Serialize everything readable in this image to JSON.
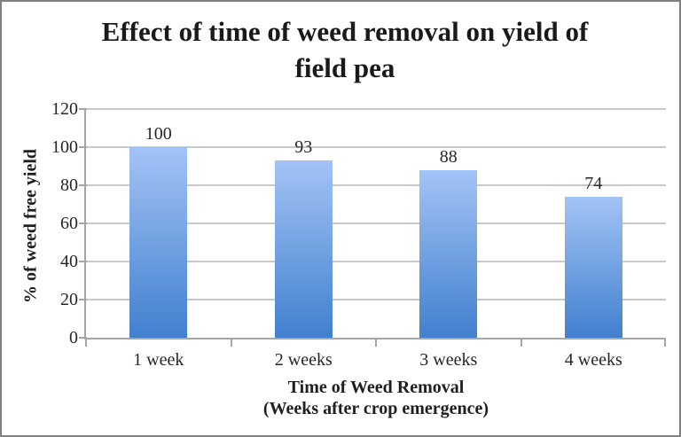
{
  "frame": {
    "background": "#ffffff",
    "border_color": "#7f7f7f"
  },
  "chart_data": {
    "type": "bar",
    "title": "Effect of time of weed removal on yield of field pea",
    "title_line1": "Effect of time of weed removal on yield of",
    "title_line2": "field pea",
    "categories": [
      "1 week",
      "2 weeks",
      "3 weeks",
      "4 weeks"
    ],
    "values": [
      100,
      93,
      88,
      74
    ],
    "data_labels": [
      "100",
      "93",
      "88",
      "74"
    ],
    "xlabel_line1": "Time of Weed Removal",
    "xlabel_line2": "(Weeks after crop emergence)",
    "ylabel": "% of weed free yield",
    "ylim": [
      0,
      120
    ],
    "ytick_step": 20,
    "yticks": [
      0,
      20,
      40,
      60,
      80,
      100,
      120
    ],
    "grid": true,
    "legend": "none",
    "colors": {
      "bar_top": "#a3c3f6",
      "bar_bottom": "#4180ce",
      "gridline": "#c8c8c8",
      "axis": "#a6a6a6",
      "text": "#262626",
      "title_text": "#1a1a1a"
    }
  }
}
